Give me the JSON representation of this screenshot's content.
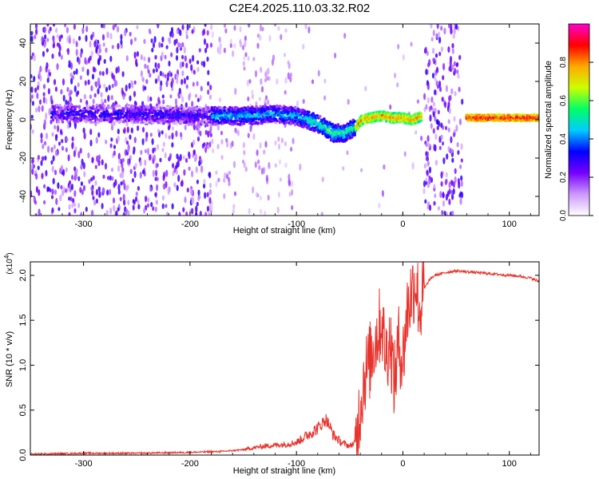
{
  "title": "C2E4.2025.110.03.32.R02",
  "chart_data": [
    {
      "type": "heatmap",
      "xlabel": "Height of straight line (km)",
      "ylabel": "Frequency (Hz)",
      "xlim": [
        -350,
        128
      ],
      "ylim": [
        -50,
        50
      ],
      "xticks": [
        -300,
        -200,
        -100,
        0,
        100
      ],
      "yticks": [
        -40,
        -20,
        0,
        20,
        40
      ],
      "colorbar": {
        "label": "Normalized spectral amplitude",
        "range": [
          0,
          1
        ],
        "ticks": [
          "0.0",
          "0.2",
          "0.4",
          "0.6",
          "0.8"
        ],
        "colors": [
          "#ffffff",
          "#cc99ff",
          "#7700ff",
          "#0000ff",
          "#00ccff",
          "#00ff66",
          "#ccff00",
          "#ffaa00",
          "#ff0000",
          "#ff00cc"
        ]
      },
      "ridge": {
        "x": [
          -330,
          -300,
          -250,
          -200,
          -150,
          -120,
          -100,
          -80,
          -65,
          -55,
          -45,
          -38,
          -30,
          -20,
          -10,
          0,
          10,
          18,
          60,
          80,
          100,
          128
        ],
        "freq": [
          3,
          3,
          3,
          2,
          2,
          3,
          2,
          -2,
          -7,
          -7,
          -4,
          0,
          1,
          2,
          1,
          1,
          0,
          2,
          1,
          1,
          1,
          1
        ]
      },
      "broadband_bands": [
        [
          20,
          56
        ]
      ]
    },
    {
      "type": "line",
      "xlabel": "Height of straight line (km)",
      "ylabel": "SNR (10 * v/v)",
      "multiplier": "(x10^4)",
      "xlim": [
        -350,
        128
      ],
      "ylim": [
        0,
        2.15
      ],
      "xticks": [
        -300,
        -200,
        -100,
        0,
        100
      ],
      "yticks": [
        "0.0",
        "0.5",
        "1.0",
        "1.5",
        "2.0"
      ],
      "series": [
        {
          "color": "#e8332c",
          "x": [
            -350,
            -300,
            -250,
            -200,
            -170,
            -150,
            -130,
            -110,
            -100,
            -90,
            -80,
            -72,
            -65,
            -58,
            -50,
            -44,
            -40,
            -36,
            -32,
            -28,
            -24,
            -20,
            -16,
            -12,
            -8,
            -4,
            0,
            4,
            8,
            12,
            16,
            20,
            25,
            30,
            40,
            50,
            60,
            70,
            80,
            90,
            100,
            110,
            120,
            128
          ],
          "values": [
            0.01,
            0.02,
            0.02,
            0.03,
            0.04,
            0.06,
            0.1,
            0.12,
            0.14,
            0.22,
            0.3,
            0.4,
            0.22,
            0.14,
            0.1,
            0.15,
            0.55,
            0.9,
            1.0,
            1.2,
            1.35,
            1.5,
            1.1,
            1.3,
            0.8,
            1.25,
            1.05,
            1.6,
            1.8,
            1.95,
            1.6,
            1.85,
            1.95,
            2.0,
            2.03,
            2.05,
            2.04,
            2.03,
            2.02,
            2.01,
            2.0,
            1.99,
            1.97,
            1.93
          ]
        }
      ]
    }
  ]
}
